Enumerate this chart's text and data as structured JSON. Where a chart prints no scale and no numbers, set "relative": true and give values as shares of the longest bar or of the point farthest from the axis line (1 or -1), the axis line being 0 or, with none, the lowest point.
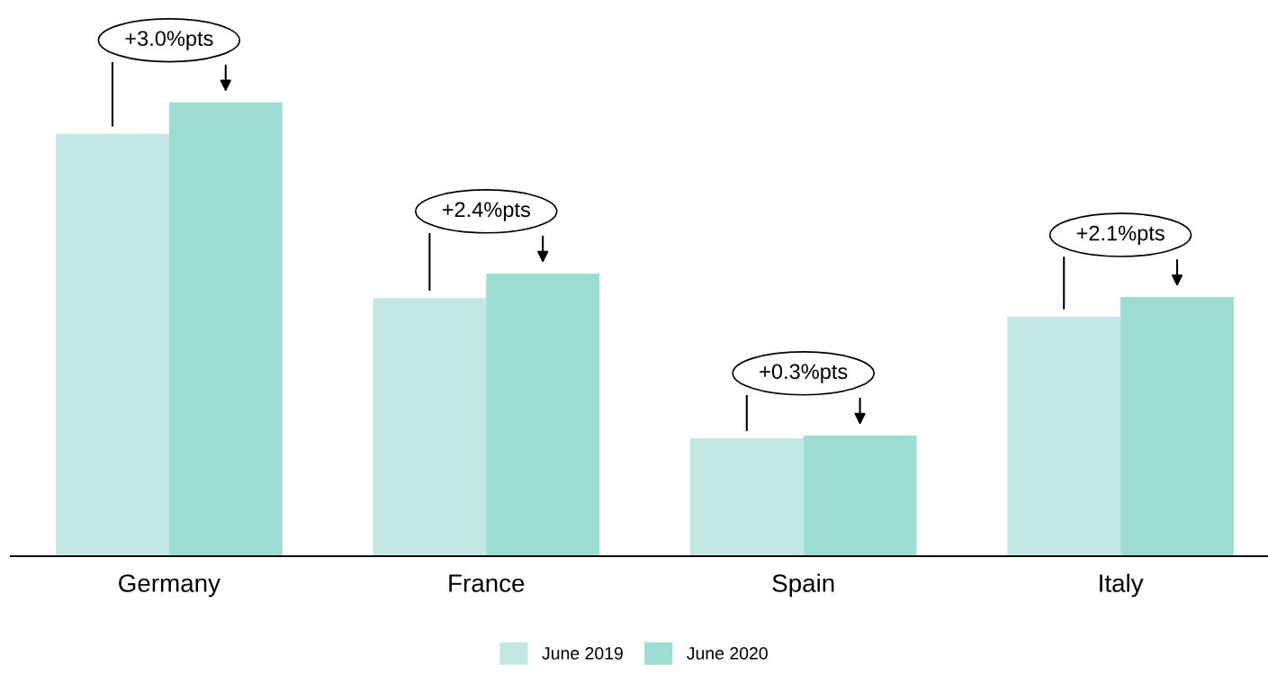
{
  "chart_data": {
    "type": "bar",
    "relative": true,
    "categories": [
      "Germany",
      "France",
      "Spain",
      "Italy"
    ],
    "series": [
      {
        "name": "June 2019",
        "color": "#c3e8e3",
        "values": [
          0.931,
          0.569,
          0.26,
          0.528
        ]
      },
      {
        "name": "June 2020",
        "color": "#9cdcd2",
        "values": [
          1,
          0.623,
          0.266,
          0.571
        ]
      }
    ],
    "annotations": [
      "+3.0%pts",
      "+2.4%pts",
      "+0.3%pts",
      "+2.1%pts"
    ],
    "legend": "bottom",
    "grid": false
  }
}
